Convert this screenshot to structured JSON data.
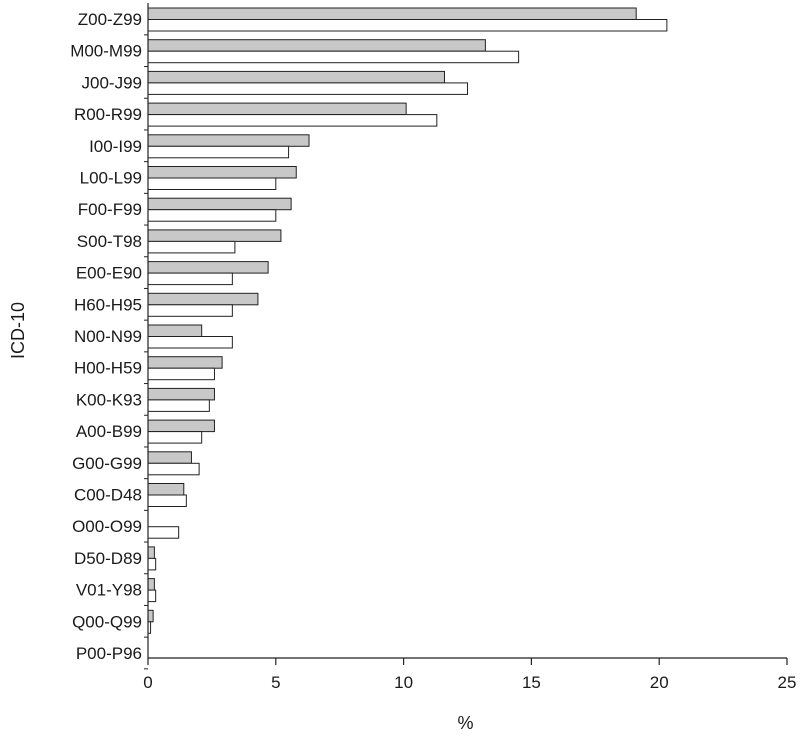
{
  "chart_data": {
    "type": "bar",
    "orientation": "horizontal",
    "categories": [
      "Z00-Z99",
      "M00-M99",
      "J00-J99",
      "R00-R99",
      "I00-I99",
      "L00-L99",
      "F00-F99",
      "S00-T98",
      "E00-E90",
      "H60-H95",
      "N00-N99",
      "H00-H59",
      "K00-K93",
      "A00-B99",
      "G00-G99",
      "C00-D48",
      "O00-O99",
      "D50-D89",
      "V01-Y98",
      "Q00-Q99",
      "P00-P96"
    ],
    "series": [
      {
        "color": "#c8c8c8",
        "values": [
          19.1,
          13.2,
          11.6,
          10.1,
          6.3,
          5.8,
          5.6,
          5.2,
          4.7,
          4.3,
          2.1,
          2.9,
          2.6,
          2.6,
          1.7,
          1.4,
          0.0,
          0.25,
          0.25,
          0.2,
          0.0
        ]
      },
      {
        "color": "#ffffff",
        "values": [
          20.3,
          14.5,
          12.5,
          11.3,
          5.5,
          5.0,
          5.0,
          3.4,
          3.3,
          3.3,
          3.3,
          2.6,
          2.4,
          2.1,
          2.0,
          1.5,
          1.2,
          0.3,
          0.3,
          0.1,
          0.0
        ]
      }
    ],
    "xlabel": "%",
    "ylabel": "ICD-10",
    "xlim": [
      0,
      25
    ],
    "xticks": [
      "0",
      "5",
      "10",
      "15",
      "20",
      "25"
    ],
    "grid": false,
    "legend": "none"
  }
}
